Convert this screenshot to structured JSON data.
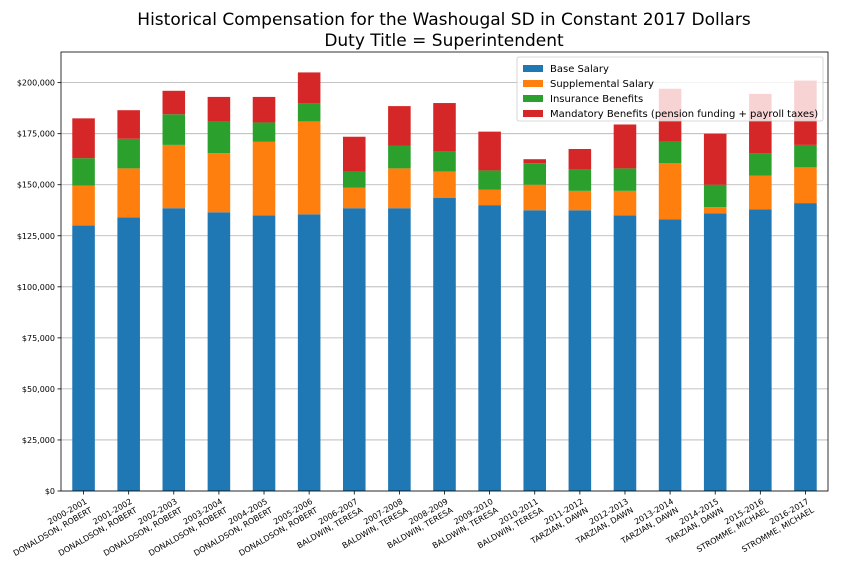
{
  "chart_data": {
    "type": "bar",
    "stacked": true,
    "title": "Historical Compensation for the Washougal SD in Constant 2017 Dollars",
    "subtitle": "Duty Title = Superintendent",
    "xlabel": "",
    "ylabel": "",
    "ylim": [
      0,
      215000
    ],
    "y_ticks": [
      0,
      25000,
      50000,
      75000,
      100000,
      125000,
      150000,
      175000,
      200000
    ],
    "y_tick_labels": [
      "$0",
      "$25,000",
      "$50,000",
      "$75,000",
      "$100,000",
      "$125,000",
      "$150,000",
      "$175,000",
      "$200,000"
    ],
    "grid": true,
    "legend_position": "top-right",
    "categories": [
      [
        "2000-2001",
        "DONALDSON, ROBERT"
      ],
      [
        "2001-2002",
        "DONALDSON, ROBERT"
      ],
      [
        "2002-2003",
        "DONALDSON, ROBERT"
      ],
      [
        "2003-2004",
        "DONALDSON, ROBERT"
      ],
      [
        "2004-2005",
        "DONALDSON, ROBERT"
      ],
      [
        "2005-2006",
        "DONALDSON, ROBERT"
      ],
      [
        "2006-2007",
        "BALDWIN, TERESA"
      ],
      [
        "2007-2008",
        "BALDWIN, TERESA"
      ],
      [
        "2008-2009",
        "BALDWIN, TERESA"
      ],
      [
        "2009-2010",
        "BALDWIN, TERESA"
      ],
      [
        "2010-2011",
        "BALDWIN, TERESA"
      ],
      [
        "2011-2012",
        "TARZIAN, DAWN"
      ],
      [
        "2012-2013",
        "TARZIAN, DAWN"
      ],
      [
        "2013-2014",
        "TARZIAN, DAWN"
      ],
      [
        "2014-2015",
        "TARZIAN, DAWN"
      ],
      [
        "2015-2016",
        "STROMME, MICHAEL"
      ],
      [
        "2016-2017",
        "STROMME, MICHAEL"
      ]
    ],
    "series": [
      {
        "name": "Base Salary",
        "color": "#1f77b4",
        "values": [
          130000,
          134000,
          138500,
          136500,
          135000,
          135500,
          138500,
          138500,
          143500,
          140000,
          137500,
          137500,
          135000,
          133000,
          136000,
          138000,
          141000
        ]
      },
      {
        "name": "Supplemental Salary",
        "color": "#ff7f0e",
        "values": [
          19500,
          24000,
          31000,
          29000,
          36000,
          45500,
          10000,
          19500,
          13000,
          7500,
          12500,
          9500,
          12000,
          27500,
          3000,
          16500,
          17500
        ]
      },
      {
        "name": "Insurance Benefits",
        "color": "#2ca02c",
        "values": [
          13500,
          14500,
          15000,
          15500,
          9500,
          9000,
          8000,
          11000,
          10000,
          9500,
          10500,
          10500,
          11000,
          10500,
          11000,
          11000,
          11000
        ]
      },
      {
        "name": "Mandatory Benefits (pension funding + payroll taxes)",
        "color": "#d62728",
        "values": [
          19500,
          14000,
          11500,
          12000,
          12500,
          15000,
          17000,
          19500,
          23500,
          19000,
          2000,
          10000,
          21500,
          26000,
          25000,
          29000,
          31500
        ]
      }
    ]
  }
}
